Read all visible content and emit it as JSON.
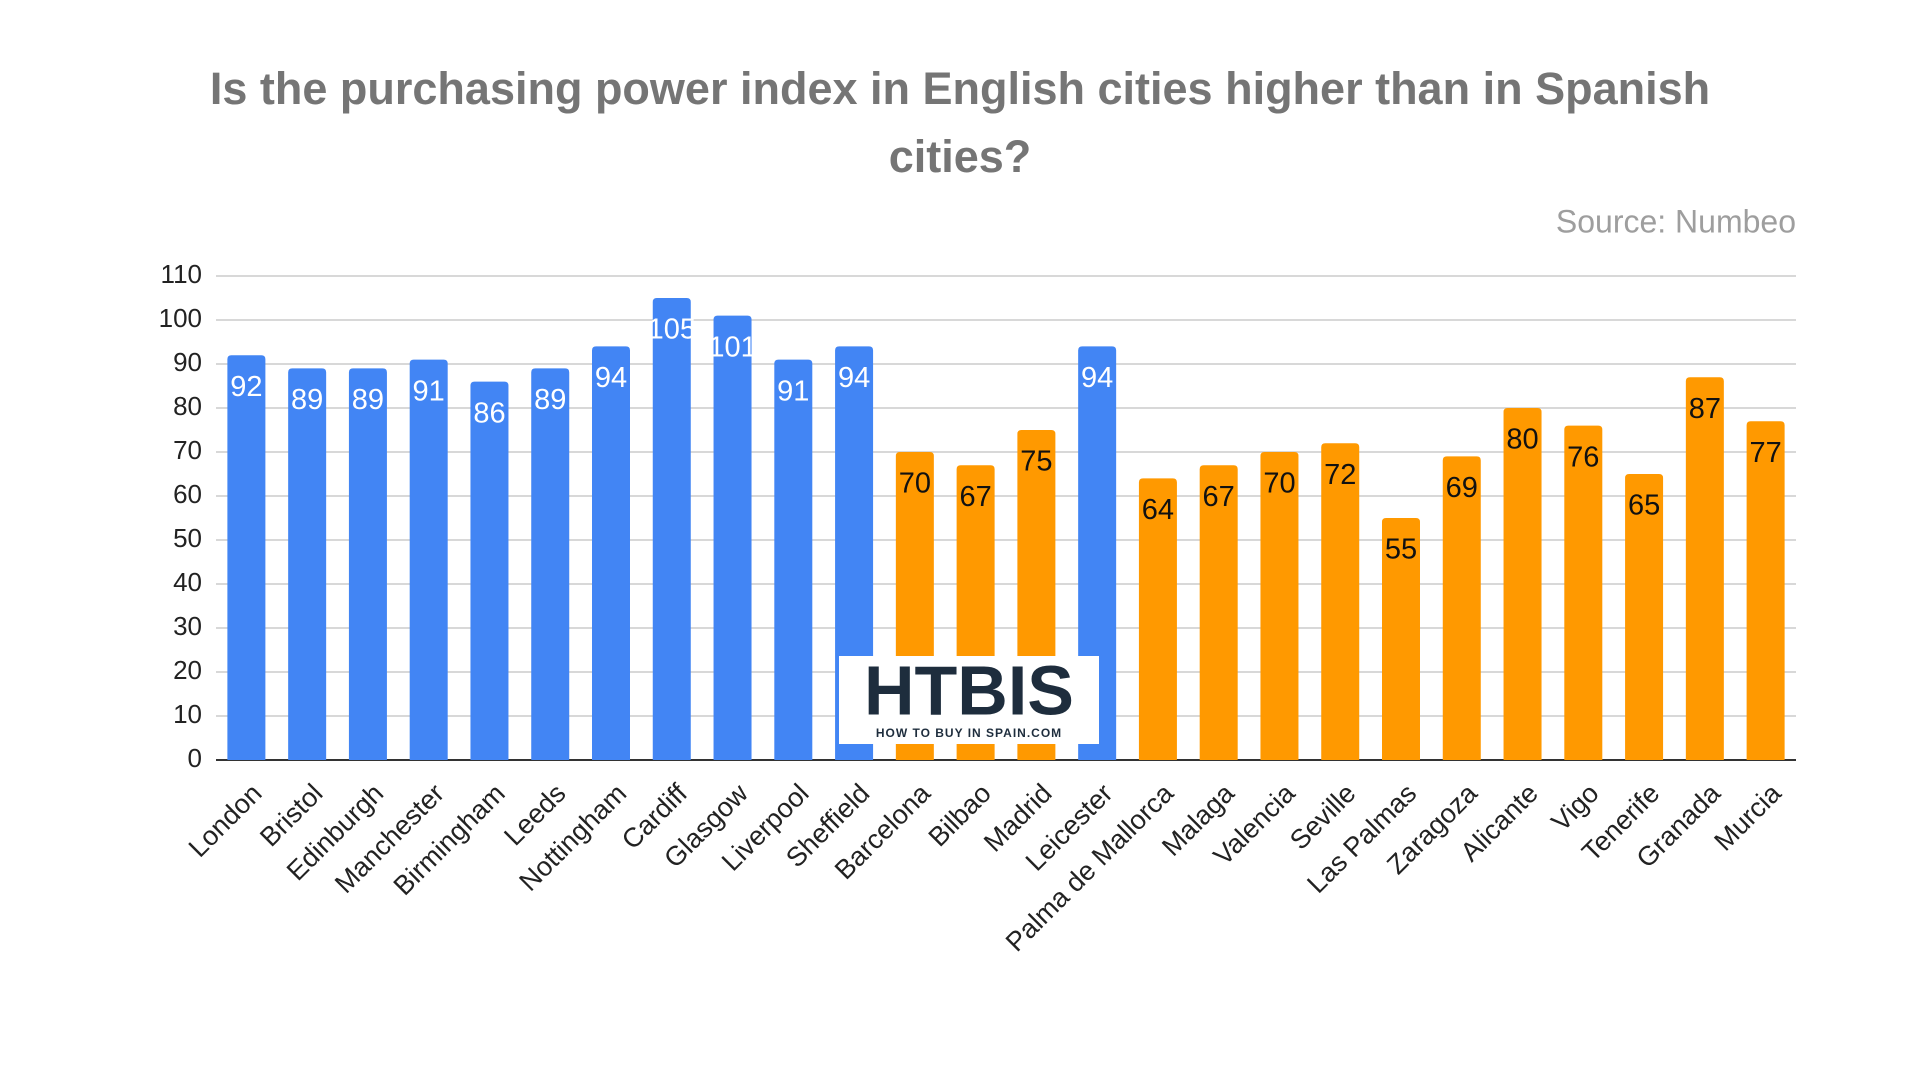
{
  "chart_data": {
    "type": "bar",
    "title": "Is the purchasing power index in English cities higher than in Spanish cities?",
    "subtitle": "Source: Numbeo",
    "categories": [
      "London",
      "Bristol",
      "Edinburgh",
      "Manchester",
      "Birmingham",
      "Leeds",
      "Nottingham",
      "Cardiff",
      "Glasgow",
      "Liverpool",
      "Sheffield",
      "Barcelona",
      "Bilbao",
      "Madrid",
      "Leicester",
      "Palma de Mallorca",
      "Malaga",
      "Valencia",
      "Seville",
      "Las Palmas",
      "Zaragoza",
      "Alicante",
      "Vigo",
      "Tenerife",
      "Granada",
      "Murcia"
    ],
    "values": [
      92,
      89,
      89,
      91,
      86,
      89,
      94,
      105,
      101,
      91,
      94,
      70,
      67,
      75,
      94,
      64,
      67,
      70,
      72,
      55,
      69,
      80,
      76,
      65,
      87,
      77
    ],
    "colors": [
      "#4285f4",
      "#4285f4",
      "#4285f4",
      "#4285f4",
      "#4285f4",
      "#4285f4",
      "#4285f4",
      "#4285f4",
      "#4285f4",
      "#4285f4",
      "#4285f4",
      "#ff9900",
      "#ff9900",
      "#ff9900",
      "#4285f4",
      "#ff9900",
      "#ff9900",
      "#ff9900",
      "#ff9900",
      "#ff9900",
      "#ff9900",
      "#ff9900",
      "#ff9900",
      "#ff9900",
      "#ff9900",
      "#ff9900"
    ],
    "ylim": [
      0,
      110
    ],
    "yticks": [
      0,
      10,
      20,
      30,
      40,
      50,
      60,
      70,
      80,
      90,
      100,
      110
    ],
    "grid": true
  },
  "logo": {
    "title": "HTBIS",
    "subtitle": "HOW TO BUY IN SPAIN.COM"
  }
}
